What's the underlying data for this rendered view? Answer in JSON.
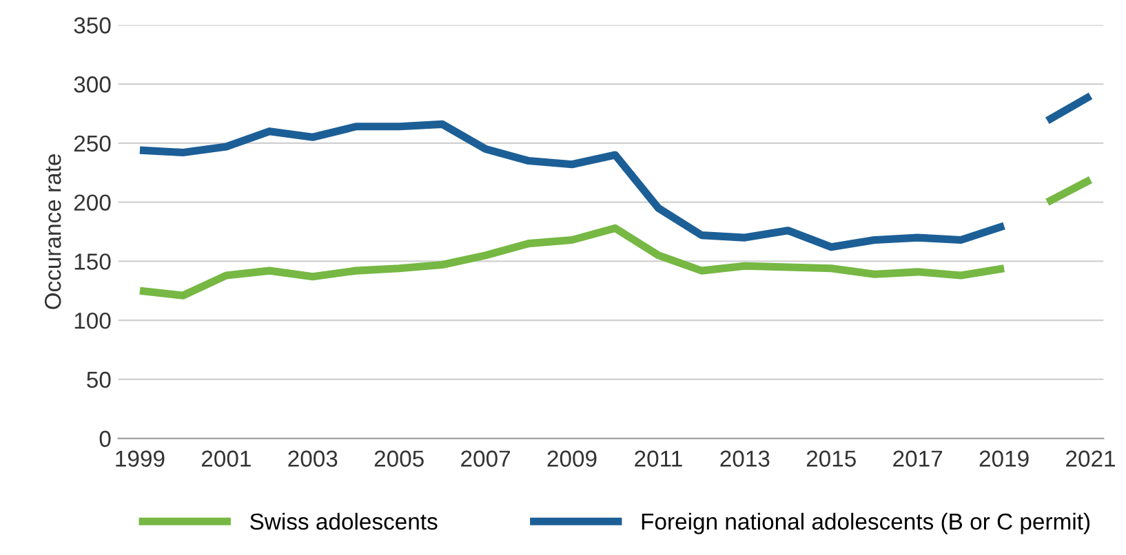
{
  "chart_data": {
    "type": "line",
    "ylabel": "Occurance rate",
    "x": [
      1999,
      2000,
      2001,
      2002,
      2003,
      2004,
      2005,
      2006,
      2007,
      2008,
      2009,
      2010,
      2011,
      2012,
      2013,
      2014,
      2015,
      2016,
      2017,
      2018,
      2019,
      2019.5,
      2020,
      2021
    ],
    "series": [
      {
        "name": "Swiss adolescents",
        "color": "#76b843",
        "values": [
          125,
          121,
          138,
          142,
          137,
          142,
          144,
          147,
          155,
          165,
          168,
          178,
          155,
          142,
          146,
          145,
          144,
          139,
          141,
          138,
          144,
          null,
          200,
          219
        ]
      },
      {
        "name": "Foreign national adolescents (B or C permit)",
        "color": "#1c5f96",
        "values": [
          244,
          242,
          247,
          260,
          255,
          264,
          264,
          266,
          245,
          235,
          232,
          240,
          195,
          172,
          170,
          176,
          162,
          168,
          170,
          168,
          180,
          null,
          269,
          290
        ]
      }
    ],
    "xlim": [
      1998.5,
      2021.3
    ],
    "xticks": [
      1999,
      2001,
      2003,
      2005,
      2007,
      2009,
      2011,
      2013,
      2015,
      2017,
      2019,
      2021
    ],
    "ylim": [
      0,
      350
    ],
    "yticks": [
      0,
      50,
      100,
      150,
      200,
      250,
      300,
      350
    ],
    "grid": "y",
    "legend": "bottom",
    "marker": "none",
    "line_style": "solid"
  }
}
